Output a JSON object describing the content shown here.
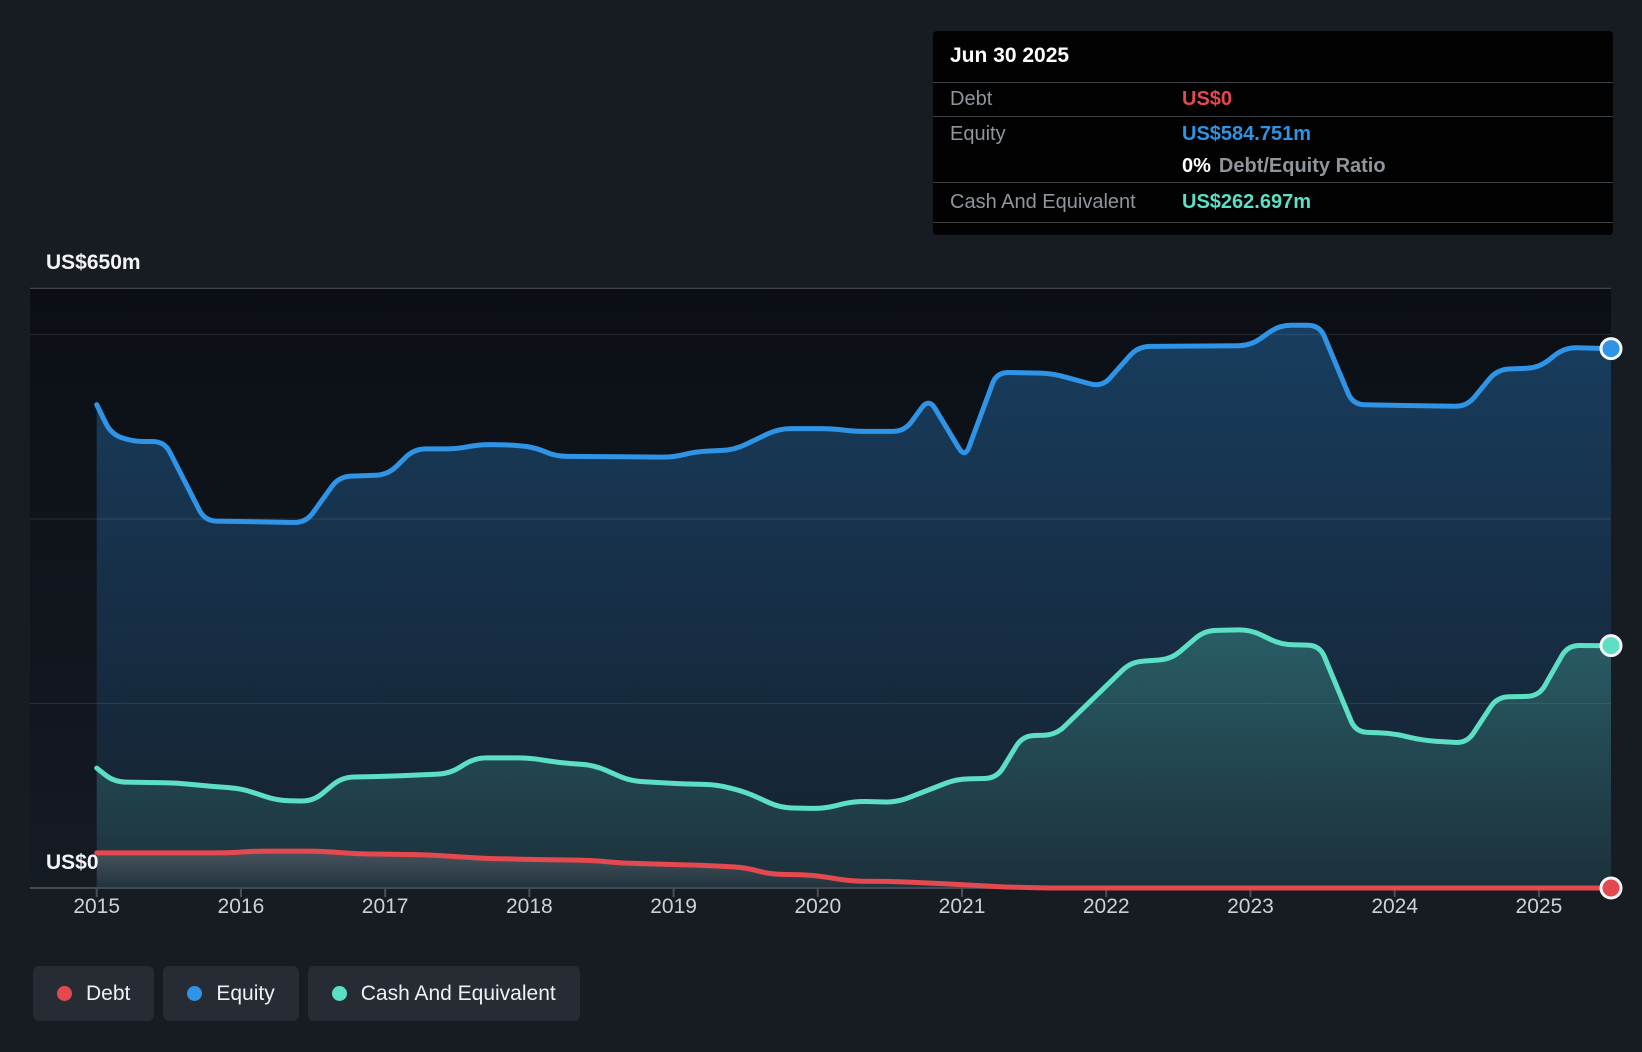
{
  "y_axis": {
    "top_label": "US$650m",
    "zero_label": "US$0"
  },
  "x_axis": {
    "years": [
      "2015",
      "2016",
      "2017",
      "2018",
      "2019",
      "2020",
      "2021",
      "2022",
      "2023",
      "2024",
      "2025"
    ]
  },
  "tooltip": {
    "date": "Jun 30 2025",
    "debt_label": "Debt",
    "debt_value": "US$0",
    "equity_label": "Equity",
    "equity_value": "US$584.751m",
    "ratio_value": "0%",
    "ratio_label": "Debt/Equity Ratio",
    "cash_label": "Cash And Equivalent",
    "cash_value": "US$262.697m"
  },
  "legend": {
    "items": [
      {
        "label": "Debt",
        "color": "#e4494f"
      },
      {
        "label": "Equity",
        "color": "#2f93e6"
      },
      {
        "label": "Cash And Equivalent",
        "color": "#5cdfc4"
      }
    ]
  },
  "colors": {
    "debt": "#e4494f",
    "equity": "#2f93e6",
    "cash": "#5cdfc4",
    "grid": "rgba(255,255,255,0.10)",
    "grid_top": "rgba(255,255,255,0.20)",
    "axis": "#434a53",
    "tick": "#4b5058"
  },
  "chart_data": {
    "type": "area",
    "unit": "US$ millions",
    "x_range": [
      2015.0,
      2025.5
    ],
    "y_range": [
      0,
      650
    ],
    "gridline_values": [
      650,
      600,
      400,
      200,
      0
    ],
    "x_tick_years": [
      2015,
      2016,
      2017,
      2018,
      2019,
      2020,
      2021,
      2022,
      2023,
      2024,
      2025
    ],
    "legend_position": "bottom-left",
    "series": [
      {
        "name": "Equity",
        "color": "#2f93e6",
        "points": [
          [
            2015.0,
            524
          ],
          [
            2015.1,
            492
          ],
          [
            2015.25,
            484
          ],
          [
            2015.47,
            484
          ],
          [
            2015.75,
            398
          ],
          [
            2016.45,
            396
          ],
          [
            2016.68,
            446
          ],
          [
            2017.02,
            448
          ],
          [
            2017.2,
            476
          ],
          [
            2017.5,
            476
          ],
          [
            2017.66,
            481
          ],
          [
            2017.92,
            480
          ],
          [
            2018.05,
            477
          ],
          [
            2018.18,
            468
          ],
          [
            2019.0,
            467
          ],
          [
            2019.15,
            473
          ],
          [
            2019.42,
            475
          ],
          [
            2019.73,
            498
          ],
          [
            2020.1,
            498
          ],
          [
            2020.25,
            495
          ],
          [
            2020.6,
            495
          ],
          [
            2020.77,
            531
          ],
          [
            2021.02,
            466
          ],
          [
            2021.24,
            559
          ],
          [
            2021.62,
            558
          ],
          [
            2021.97,
            543
          ],
          [
            2022.22,
            587
          ],
          [
            2023.0,
            588
          ],
          [
            2023.2,
            610
          ],
          [
            2023.48,
            610
          ],
          [
            2023.71,
            524
          ],
          [
            2024.5,
            522
          ],
          [
            2024.71,
            562
          ],
          [
            2025.0,
            564
          ],
          [
            2025.18,
            586
          ],
          [
            2025.5,
            584.751
          ]
        ]
      },
      {
        "name": "Cash And Equivalent",
        "color": "#5cdfc4",
        "points": [
          [
            2015.0,
            130
          ],
          [
            2015.12,
            115
          ],
          [
            2015.55,
            114
          ],
          [
            2015.8,
            110
          ],
          [
            2016.0,
            108
          ],
          [
            2016.25,
            95
          ],
          [
            2016.5,
            94
          ],
          [
            2016.7,
            120
          ],
          [
            2017.0,
            121
          ],
          [
            2017.45,
            124
          ],
          [
            2017.62,
            141
          ],
          [
            2018.0,
            141
          ],
          [
            2018.2,
            136
          ],
          [
            2018.45,
            133
          ],
          [
            2018.7,
            116
          ],
          [
            2019.05,
            113
          ],
          [
            2019.3,
            112
          ],
          [
            2019.5,
            104
          ],
          [
            2019.74,
            87
          ],
          [
            2020.04,
            86
          ],
          [
            2020.25,
            94
          ],
          [
            2020.55,
            93
          ],
          [
            2020.96,
            118
          ],
          [
            2021.24,
            119
          ],
          [
            2021.42,
            165
          ],
          [
            2021.65,
            166
          ],
          [
            2022.17,
            245
          ],
          [
            2022.45,
            248
          ],
          [
            2022.68,
            279
          ],
          [
            2023.0,
            280
          ],
          [
            2023.21,
            264
          ],
          [
            2023.48,
            263
          ],
          [
            2023.73,
            169
          ],
          [
            2023.97,
            168
          ],
          [
            2024.2,
            160
          ],
          [
            2024.5,
            157
          ],
          [
            2024.71,
            207
          ],
          [
            2025.0,
            208
          ],
          [
            2025.2,
            263
          ],
          [
            2025.5,
            262.697
          ]
        ]
      },
      {
        "name": "Debt",
        "color": "#e4494f",
        "points": [
          [
            2015.0,
            38
          ],
          [
            2015.9,
            38
          ],
          [
            2016.1,
            40
          ],
          [
            2016.55,
            40
          ],
          [
            2016.8,
            37
          ],
          [
            2017.3,
            36
          ],
          [
            2017.7,
            32
          ],
          [
            2018.0,
            31
          ],
          [
            2018.42,
            30
          ],
          [
            2018.65,
            27
          ],
          [
            2019.1,
            25
          ],
          [
            2019.3,
            24
          ],
          [
            2019.5,
            22
          ],
          [
            2019.67,
            15
          ],
          [
            2019.97,
            14
          ],
          [
            2020.23,
            7.5
          ],
          [
            2020.55,
            7
          ],
          [
            2020.96,
            4
          ],
          [
            2021.3,
            1
          ],
          [
            2021.6,
            0
          ],
          [
            2025.5,
            0
          ]
        ]
      }
    ],
    "end_point_values": {
      "date": "Jun 30 2025",
      "Debt": 0,
      "Equity": 584.751,
      "Cash And Equivalent": 262.697
    }
  }
}
